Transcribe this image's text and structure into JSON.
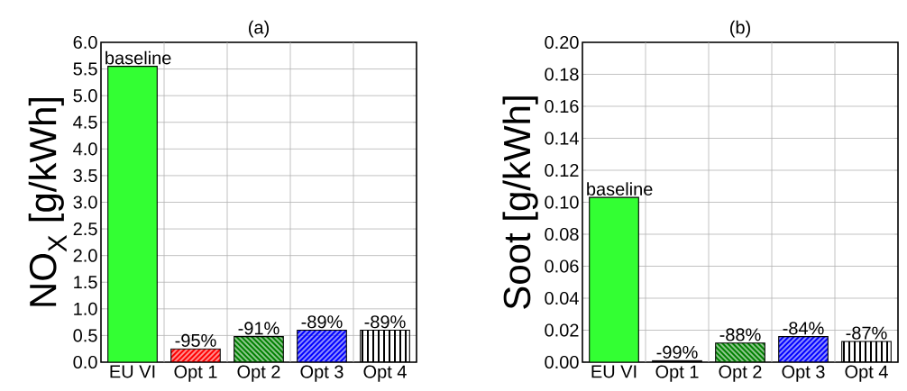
{
  "chart_data": [
    {
      "type": "bar",
      "title": "(a)",
      "ylabel": "NO$_{X}$ [g/kWh]",
      "categories": [
        "EU VI",
        "Opt 1",
        "Opt 2",
        "Opt 3",
        "Opt 4"
      ],
      "values": [
        5.55,
        0.25,
        0.48,
        0.6,
        0.6
      ],
      "colors": [
        "#33ff33",
        "#ff0000",
        "#008000",
        "#0000ff",
        "#000000"
      ],
      "annotations": [
        {
          "text": "baseline",
          "x": "EU VI",
          "y": 5.55
        },
        {
          "text": "-95%",
          "x": "Opt 1",
          "y": 0.25
        },
        {
          "text": "-91%",
          "x": "Opt 2",
          "y": 0.48
        },
        {
          "text": "-89%",
          "x": "Opt 3",
          "y": 0.6
        },
        {
          "text": "-89%",
          "x": "Opt 4",
          "y": 0.6
        }
      ],
      "ylim": [
        0,
        6
      ],
      "yticks": [
        {
          "value": 0,
          "label": "0.0"
        },
        {
          "value": 0.5,
          "label": "0.5"
        },
        {
          "value": 1,
          "label": "1.0"
        },
        {
          "value": 1.5,
          "label": "1.5"
        },
        {
          "value": 2,
          "label": "2.0"
        },
        {
          "value": 2.5,
          "label": "2.5"
        },
        {
          "value": 3,
          "label": "3.0"
        },
        {
          "value": 3.5,
          "label": "3.5"
        },
        {
          "value": 4,
          "label": "4.0"
        },
        {
          "value": 4.5,
          "label": "4.5"
        },
        {
          "value": 5,
          "label": "5.0"
        },
        {
          "value": 5.5,
          "label": "5.5"
        },
        {
          "value": 6,
          "label": "6.0"
        }
      ],
      "grid": true
    },
    {
      "type": "bar",
      "title": "(b)",
      "ylabel": "Soot [g/kWh]",
      "categories": [
        "EU VI",
        "Opt 1",
        "Opt 2",
        "Opt 3",
        "Opt 4"
      ],
      "values": [
        0.103,
        0.001,
        0.012,
        0.016,
        0.013
      ],
      "colors": [
        "#33ff33",
        "#000000",
        "#008000",
        "#0000ff",
        "#000000"
      ],
      "annotations": [
        {
          "text": "baseline",
          "x": "EU VI",
          "y": 0.103
        },
        {
          "text": "-99%",
          "x": "Opt 1",
          "y": 0.001
        },
        {
          "text": "-88%",
          "x": "Opt 2",
          "y": 0.012
        },
        {
          "text": "-84%",
          "x": "Opt 3",
          "y": 0.016
        },
        {
          "text": "-87%",
          "x": "Opt 4",
          "y": 0.013
        }
      ],
      "ylim": [
        0,
        0.2
      ],
      "yticks": [
        {
          "value": 0,
          "label": "0.00"
        },
        {
          "value": 0.02,
          "label": "0.02"
        },
        {
          "value": 0.04,
          "label": "0.04"
        },
        {
          "value": 0.06,
          "label": "0.06"
        },
        {
          "value": 0.08,
          "label": "0.08"
        },
        {
          "value": 0.1,
          "label": "0.10"
        },
        {
          "value": 0.12,
          "label": "0.12"
        },
        {
          "value": 0.14,
          "label": "0.14"
        },
        {
          "value": 0.16,
          "label": "0.16"
        },
        {
          "value": 0.18,
          "label": "0.18"
        },
        {
          "value": 0.2,
          "label": "0.20"
        }
      ],
      "grid": true
    }
  ]
}
